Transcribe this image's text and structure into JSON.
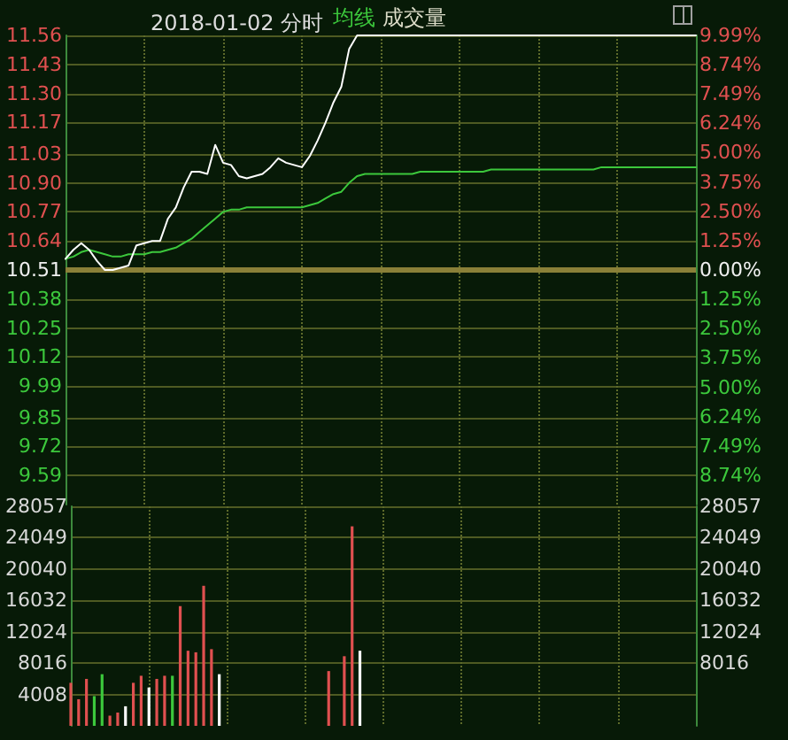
{
  "chart_data": [
    {
      "type": "line",
      "title": "2018-01-02 分时",
      "grid": true,
      "marker": "none",
      "line_style": "solid",
      "categories": [
        null,
        null,
        null,
        null,
        null,
        null,
        null,
        null,
        null,
        null,
        null,
        null,
        null,
        null,
        null,
        null,
        null,
        null,
        null,
        null,
        null,
        null,
        null,
        null,
        null,
        null,
        null,
        null,
        null,
        null,
        null,
        null,
        null,
        null,
        null,
        null,
        null,
        null,
        null,
        null,
        null,
        null,
        null,
        null,
        null,
        null,
        null,
        null,
        null,
        null,
        null,
        null,
        null,
        null,
        null,
        null,
        null,
        null,
        null,
        null,
        null,
        null,
        null,
        null,
        null,
        null,
        null,
        null,
        null,
        null,
        null,
        null,
        null,
        null,
        null,
        null,
        null,
        null,
        null,
        null,
        null
      ],
      "ylim": [
        9.46,
        11.56
      ],
      "yticks": [
        11.56,
        11.43,
        {
          "value": 11.3,
          "label": "11.30"
        },
        11.17,
        11.03,
        {
          "value": 10.9,
          "label": "10.90"
        },
        10.77,
        10.64,
        10.51,
        10.38,
        10.25,
        10.12,
        9.99,
        9.85,
        9.72,
        9.59
      ],
      "y2lim": [
        -9.99,
        9.99
      ],
      "y2ticks": [
        {
          "value": 9.99,
          "label": "9.99%"
        },
        {
          "value": 8.74,
          "label": "8.74%"
        },
        {
          "value": 7.49,
          "label": "7.49%"
        },
        {
          "value": 6.24,
          "label": "6.24%"
        },
        {
          "value": 5,
          "label": "5.00%"
        },
        {
          "value": 3.75,
          "label": "3.75%"
        },
        {
          "value": 2.5,
          "label": "2.50%"
        },
        {
          "value": 1.25,
          "label": "1.25%"
        },
        {
          "value": 0,
          "label": "0.00%"
        },
        {
          "value": -1.25,
          "label": "1.25%"
        },
        {
          "value": -2.5,
          "label": "2.50%"
        },
        {
          "value": -3.75,
          "label": "3.75%"
        },
        {
          "value": -5,
          "label": "5.00%"
        },
        {
          "value": -6.24,
          "label": "6.24%"
        },
        {
          "value": -7.49,
          "label": "7.49%"
        },
        {
          "value": -8.74,
          "label": "8.74%"
        }
      ],
      "ref_lines": [
        {
          "axis": "y",
          "value": 10.51,
          "color": "#8a8038"
        }
      ],
      "series": [
        {
          "color": "#ffffff",
          "values": [
            10.56,
            10.6,
            10.63,
            10.6,
            10.55,
            10.51,
            10.51,
            10.52,
            10.53,
            10.62,
            10.63,
            10.64,
            10.64,
            10.74,
            10.79,
            10.88,
            10.95,
            10.95,
            10.94,
            11.07,
            10.99,
            10.98,
            10.93,
            10.92,
            10.93,
            10.94,
            10.97,
            11.01,
            10.99,
            10.98,
            10.97,
            11.02,
            11.09,
            11.17,
            11.26,
            11.33,
            11.5,
            11.56,
            11.56,
            11.56,
            11.56,
            11.56,
            11.56,
            11.56,
            11.56,
            11.56,
            11.56,
            11.56,
            11.56,
            11.56,
            11.56,
            11.56,
            11.56,
            11.56,
            11.56,
            11.56,
            11.56,
            11.56,
            11.56,
            11.56,
            11.56,
            11.56,
            11.56,
            11.56,
            11.56,
            11.56,
            11.56,
            11.56,
            11.56,
            11.56,
            11.56,
            11.56,
            11.56,
            11.56,
            11.56,
            11.56,
            11.56,
            11.56,
            11.56,
            11.56,
            11.56
          ]
        },
        {
          "name": "均线",
          "color": "#3cc83c",
          "values": [
            10.56,
            10.57,
            10.59,
            10.6,
            10.59,
            10.58,
            10.57,
            10.57,
            10.58,
            10.58,
            10.58,
            10.59,
            10.59,
            10.6,
            10.61,
            10.63,
            10.65,
            10.68,
            10.71,
            10.74,
            10.77,
            10.78,
            10.78,
            10.79,
            10.79,
            10.79,
            10.79,
            10.79,
            10.79,
            10.79,
            10.79,
            10.8,
            10.81,
            10.83,
            10.85,
            10.86,
            10.9,
            10.93,
            10.94,
            10.94,
            10.94,
            10.94,
            10.94,
            10.94,
            10.94,
            10.95,
            10.95,
            10.95,
            10.95,
            10.95,
            10.95,
            10.95,
            10.95,
            10.95,
            10.96,
            10.96,
            10.96,
            10.96,
            10.96,
            10.96,
            10.96,
            10.96,
            10.96,
            10.96,
            10.96,
            10.96,
            10.96,
            10.96,
            10.97,
            10.97,
            10.97,
            10.97,
            10.97,
            10.97,
            10.97,
            10.97,
            10.97,
            10.97,
            10.97,
            10.97,
            10.97
          ]
        }
      ]
    },
    {
      "type": "bar",
      "grid": true,
      "categories": [
        null,
        null,
        null,
        null,
        null,
        null,
        null,
        null,
        null,
        null,
        null,
        null,
        null,
        null,
        null,
        null,
        null,
        null,
        null,
        null,
        null,
        null,
        null,
        null,
        null,
        null,
        null,
        null,
        null,
        null,
        null,
        null,
        null,
        null,
        null,
        null,
        null,
        null,
        null,
        null,
        null,
        null,
        null,
        null,
        null,
        null,
        null,
        null,
        null,
        null,
        null,
        null,
        null,
        null,
        null,
        null,
        null,
        null,
        null,
        null,
        null,
        null,
        null,
        null,
        null,
        null,
        null,
        null,
        null,
        null,
        null,
        null,
        null,
        null,
        null,
        null,
        null,
        null,
        null,
        null,
        null
      ],
      "ylim": [
        0,
        28057
      ],
      "yticks": [
        4008,
        8016,
        12024,
        16032,
        20040,
        24049,
        28057
      ],
      "y2lim": [
        0,
        28057
      ],
      "y2ticks": [
        8016,
        12024,
        16032,
        20040,
        24049,
        28057
      ],
      "series": [
        {
          "name": "成交量",
          "color": "#dcdcc8",
          "values": [
            5500,
            3400,
            6000,
            3800,
            6600,
            1300,
            1700,
            2500,
            5500,
            6400,
            4900,
            6000,
            6400,
            6400,
            15300,
            9600,
            9400,
            17900,
            9800,
            6600,
            null,
            null,
            null,
            null,
            null,
            null,
            null,
            null,
            null,
            null,
            null,
            null,
            null,
            7000,
            null,
            8900,
            25500,
            9600,
            null,
            null,
            null,
            null,
            null,
            null,
            null,
            null,
            null,
            null,
            null,
            null,
            null,
            null,
            null,
            null,
            null,
            null,
            null,
            null,
            null,
            null,
            null,
            null,
            null,
            null,
            null,
            null,
            null,
            null,
            null,
            null,
            null,
            null,
            null,
            null,
            null,
            null,
            null,
            null,
            null,
            null,
            null
          ],
          "colors": [
            "#e05050",
            "#e05050",
            "#e05050",
            "#3cc83c",
            "#3cc83c",
            "#e05050",
            "#e05050",
            "#ffffff",
            "#e05050",
            "#e05050",
            "#ffffff",
            "#e05050",
            "#e05050",
            "#3cc83c",
            "#e05050",
            "#e05050",
            "#e05050",
            "#e05050",
            "#e05050",
            "#ffffff",
            null,
            null,
            null,
            null,
            null,
            null,
            null,
            null,
            null,
            null,
            null,
            null,
            null,
            "#e05050",
            null,
            "#e05050",
            "#e05050",
            "#ffffff",
            null,
            null,
            null,
            null,
            null,
            null,
            null,
            null,
            null,
            null,
            null,
            null,
            null,
            null,
            null,
            null,
            null,
            null,
            null,
            null,
            null,
            null,
            null,
            null,
            null,
            null,
            null,
            null,
            null,
            null,
            null,
            null,
            null,
            null,
            null,
            null,
            null,
            null,
            null,
            null,
            null,
            null,
            null
          ]
        }
      ]
    }
  ]
}
